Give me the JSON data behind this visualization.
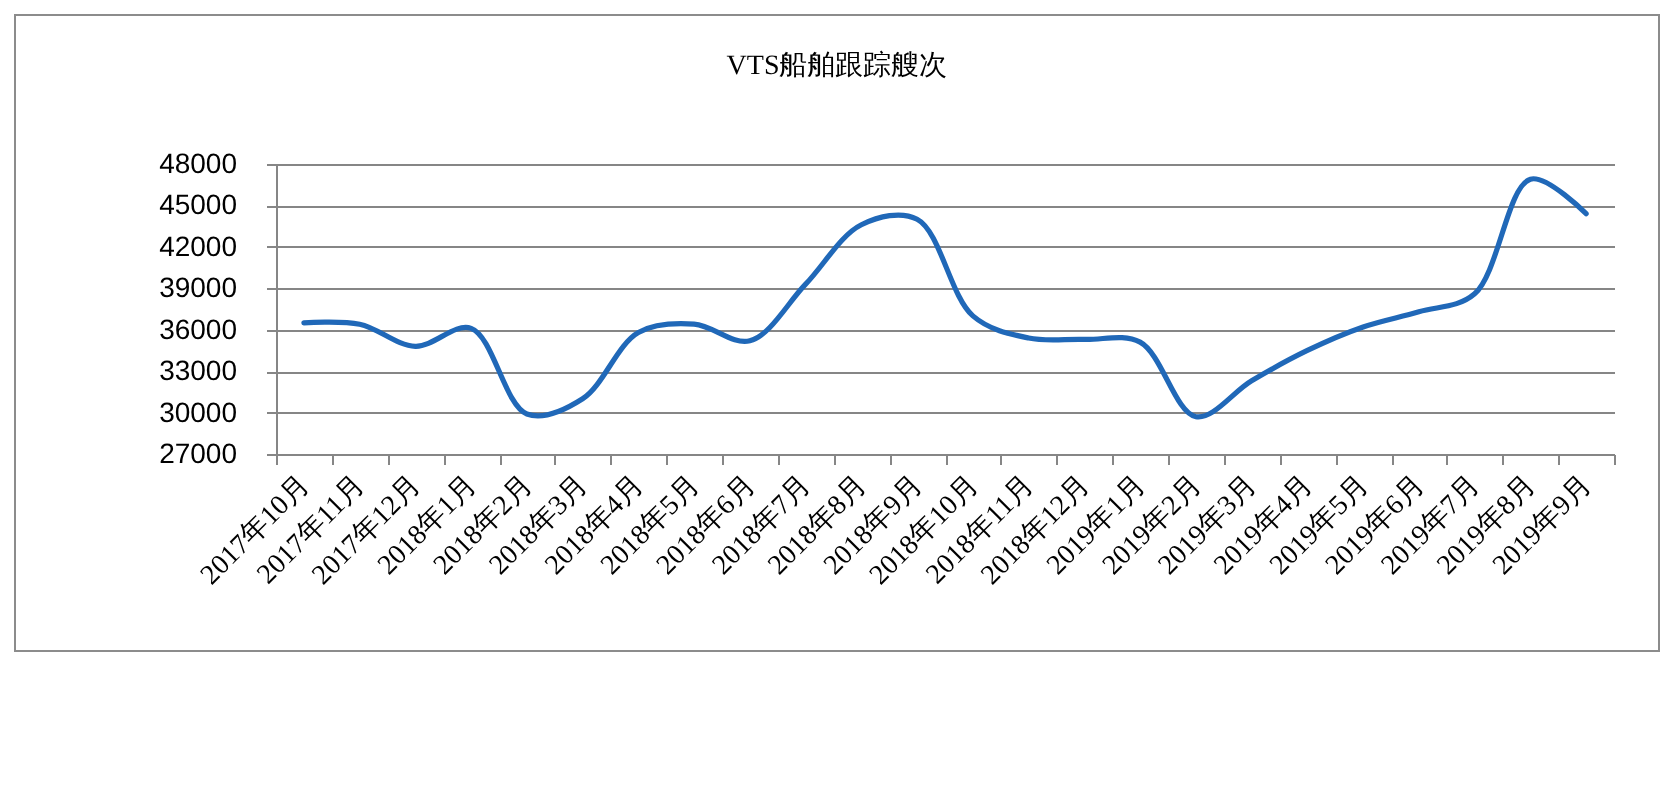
{
  "chart_data": {
    "type": "line",
    "title": "VTS船舶跟踪艘次",
    "categories": [
      "2017年10月",
      "2017年11月",
      "2017年12月",
      "2018年1月",
      "2018年2月",
      "2018年3月",
      "2018年4月",
      "2018年5月",
      "2018年6月",
      "2018年7月",
      "2018年8月",
      "2018年9月",
      "2018年10月",
      "2018年11月",
      "2018年12月",
      "2019年1月",
      "2019年2月",
      "2019年3月",
      "2019年4月",
      "2019年5月",
      "2019年6月",
      "2019年7月",
      "2019年8月",
      "2019年9月"
    ],
    "values": [
      36500,
      36400,
      34800,
      36100,
      29900,
      31000,
      35800,
      36400,
      35200,
      39300,
      43600,
      44000,
      37000,
      35400,
      35300,
      35100,
      29700,
      32300,
      34500,
      36200,
      37300,
      38600,
      46900,
      44400
    ],
    "color": "#2068b8",
    "ylim": [
      27000,
      48000
    ],
    "yticks": [
      27000,
      30000,
      33000,
      36000,
      39000,
      42000,
      45000,
      48000
    ],
    "grid": "y"
  }
}
